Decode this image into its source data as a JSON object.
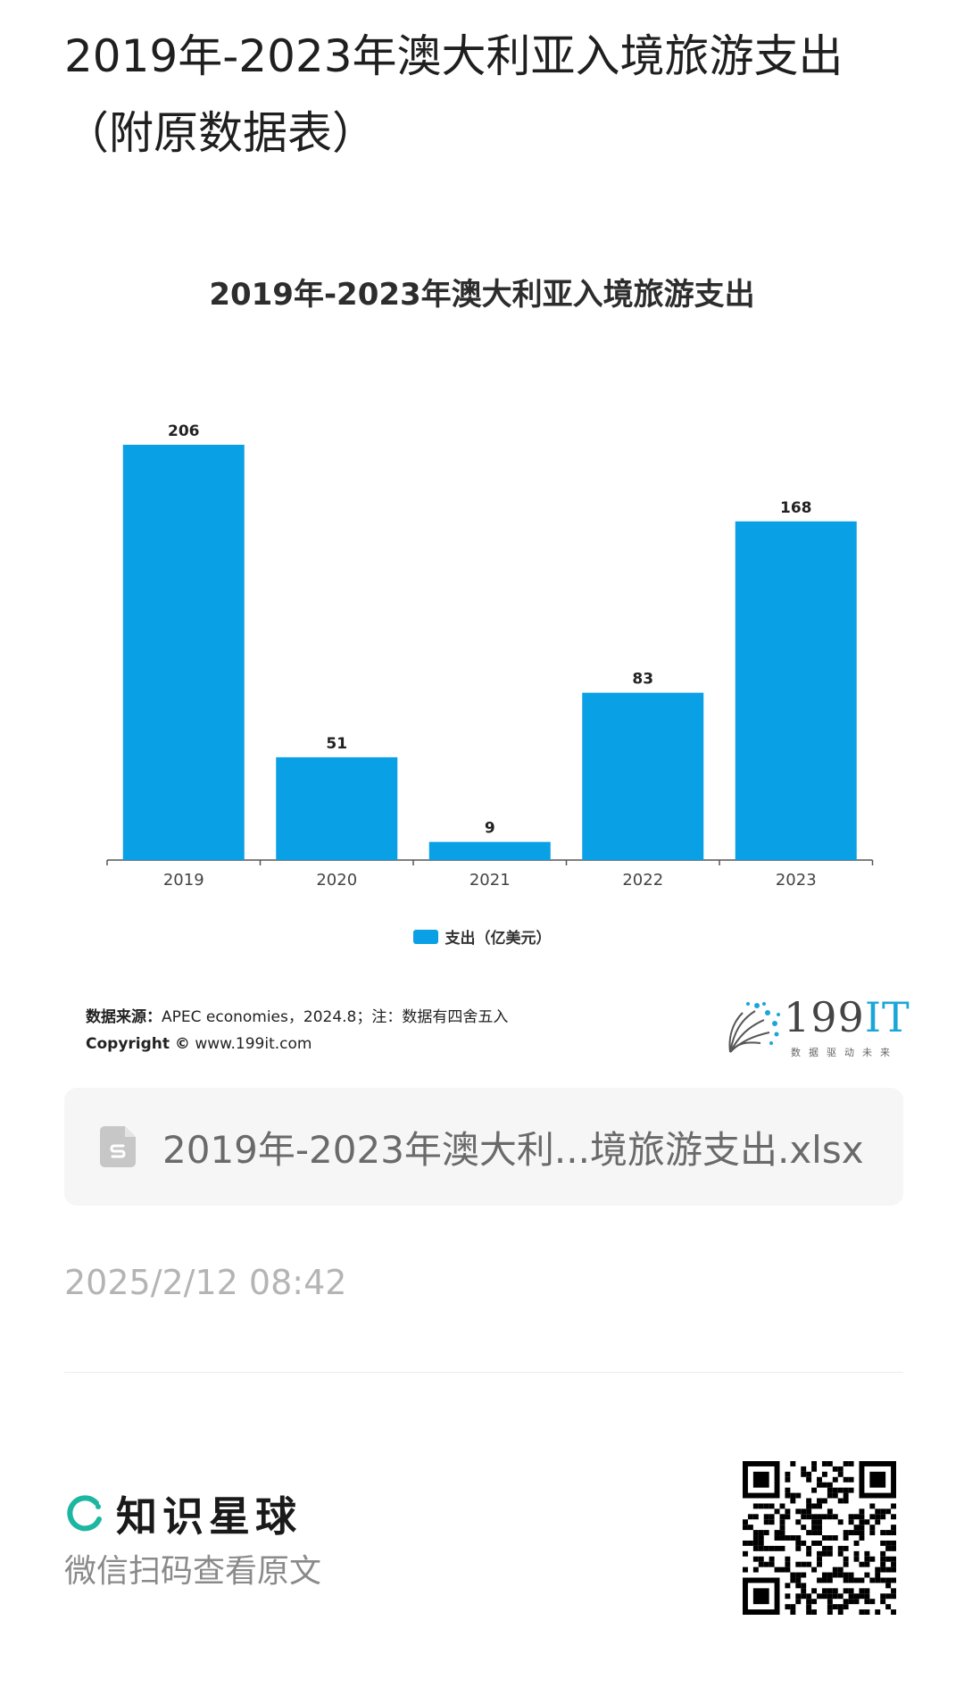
{
  "post": {
    "title_line1": "2019年-2023年澳大利亚入境旅游支出",
    "title_line2": "（附原数据表）",
    "timestamp": "2025/2/12 08:42"
  },
  "chart_data": {
    "type": "bar",
    "title": "2019年-2023年澳大利亚入境旅游支出",
    "categories": [
      "2019",
      "2020",
      "2021",
      "2022",
      "2023"
    ],
    "series": [
      {
        "name": "支出（亿美元）",
        "values": [
          206,
          51,
          9,
          83,
          168
        ]
      }
    ],
    "data_labels": [
      "206",
      "51",
      "9",
      "83",
      "168"
    ],
    "ylim": [
      0,
      206
    ],
    "grid": false,
    "legend_position": "bottom",
    "bar_color": "#0aa0e6"
  },
  "legend": {
    "label": "支出（亿美元）"
  },
  "source": {
    "label": "数据来源：",
    "text": "APEC economies，2024.8；注：数据有四舍五入",
    "copyright_label": "Copyright ©",
    "copyright_url": "www.199it.com"
  },
  "logo": {
    "brand_num": "199",
    "brand_it": "IT",
    "tagline": "数据驱动未来"
  },
  "file": {
    "name": "2019年-2023年澳大利...境旅游支出.xlsx",
    "icon": "spreadsheet-file-icon"
  },
  "footer": {
    "brand": "知识星球",
    "scan_hint": "微信扫码查看原文",
    "brand_color": "#1db6a0"
  }
}
